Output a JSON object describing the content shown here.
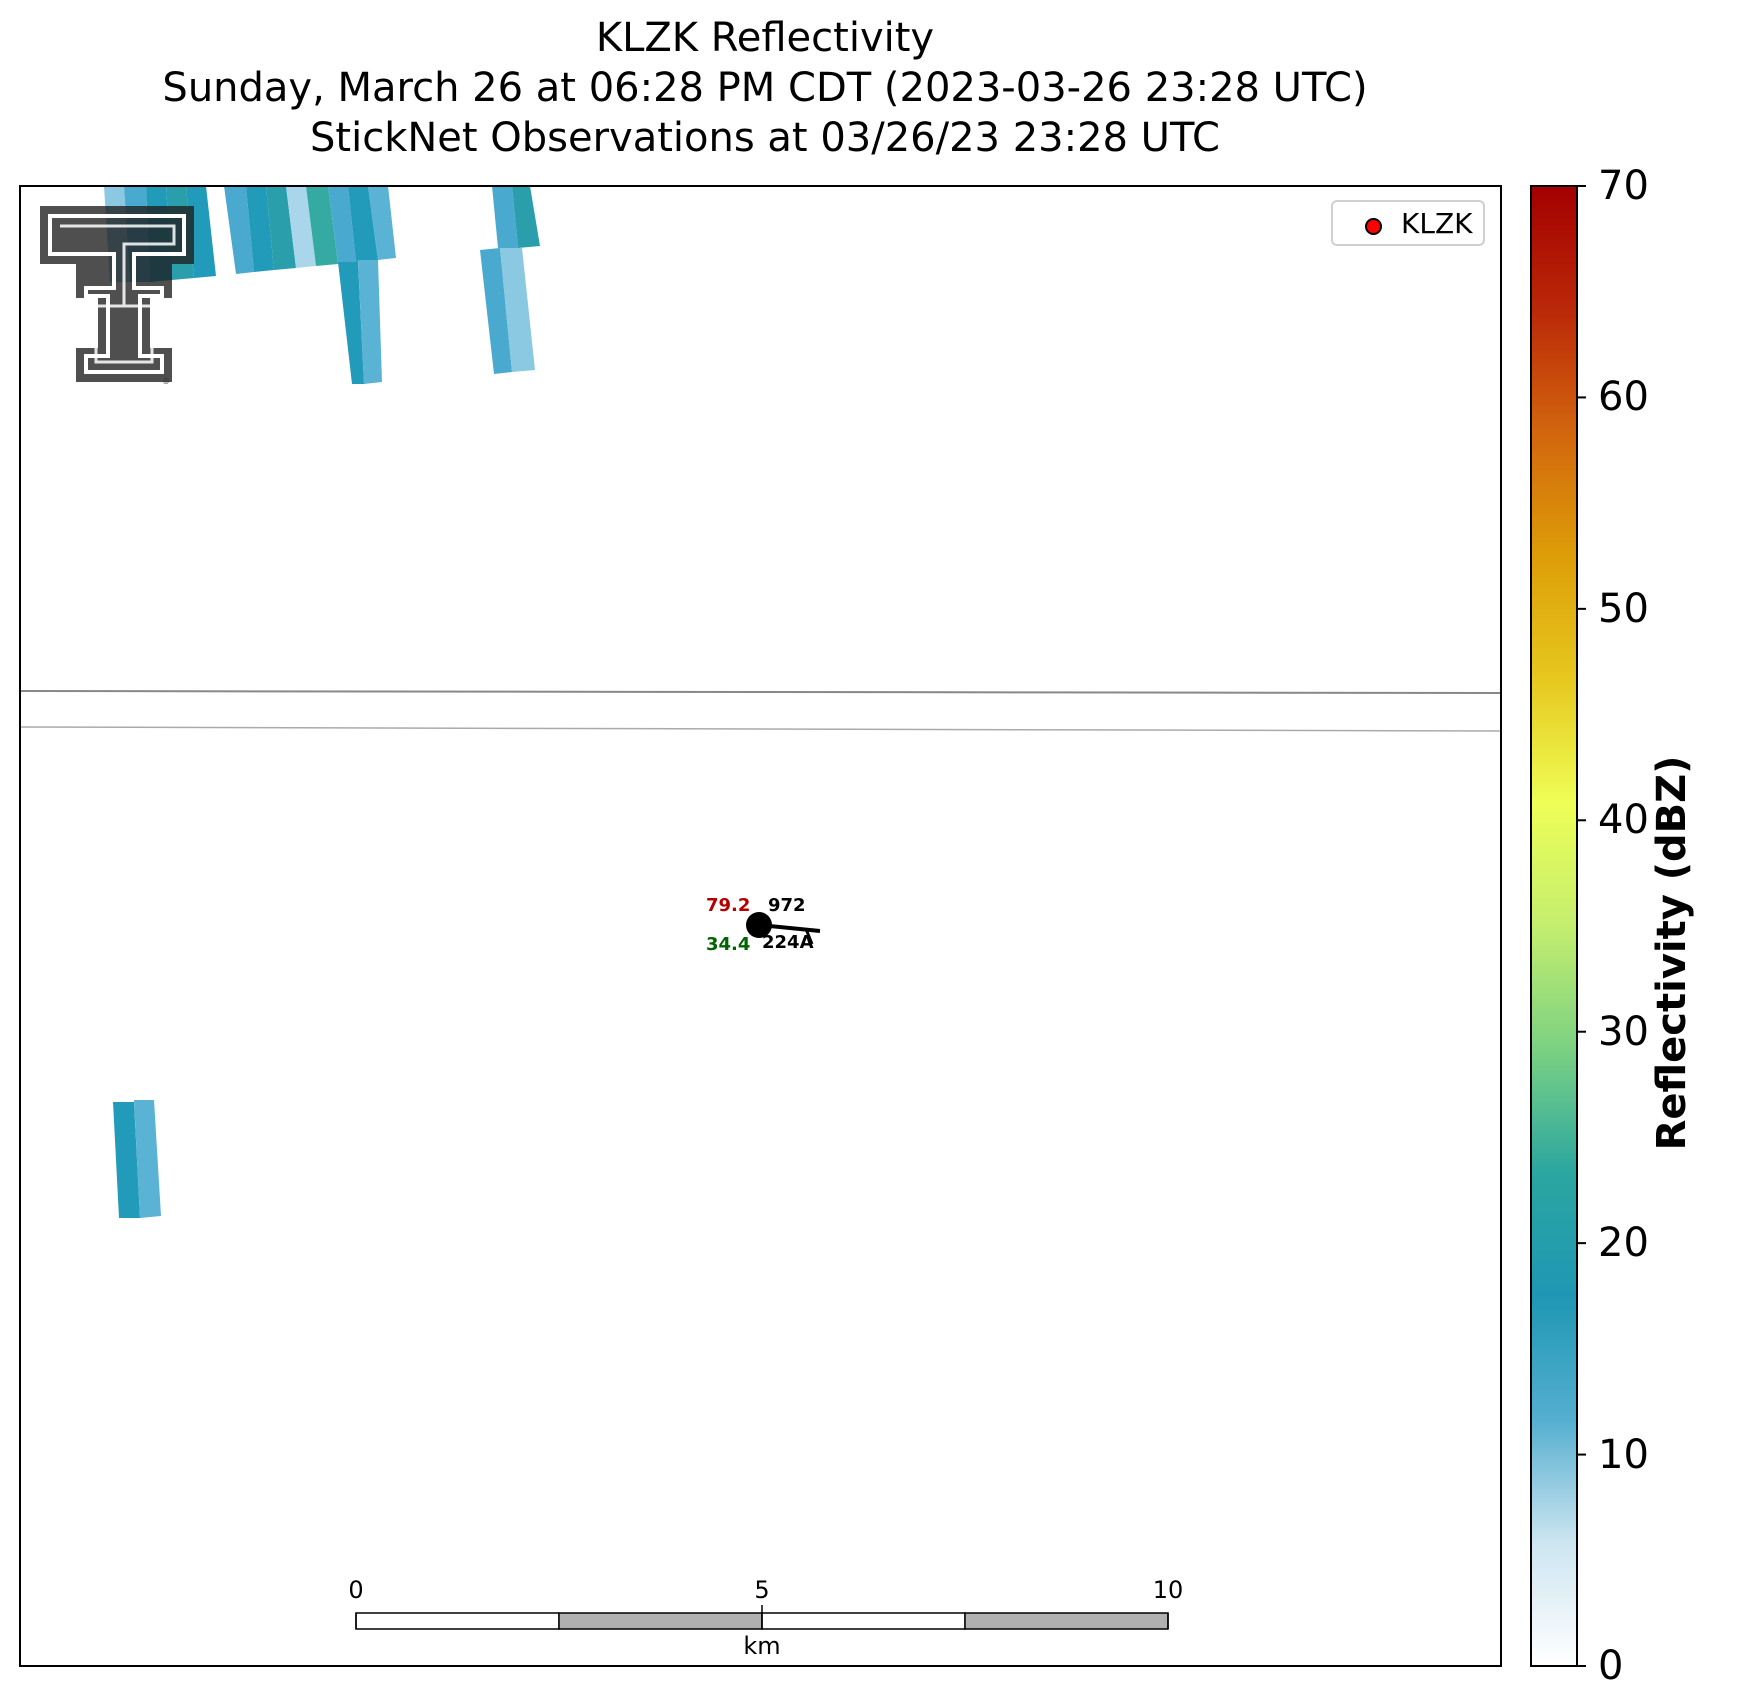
{
  "chart_data": {
    "type": "heatmap",
    "title": [
      "KLZK Reflectivity",
      "Sunday, March 26 at 06:28 PM CDT (2023-03-26 23:28 UTC)",
      "StickNet Observations at 03/26/23 23:28 UTC"
    ],
    "radar": "KLZK",
    "legend": {
      "entries": [
        "KLZK"
      ],
      "marker_color": "#ff0000",
      "placement": "upper-right"
    },
    "colorbar": {
      "label": "Reflectivity (dBZ)",
      "range": [
        0,
        70
      ],
      "ticks": [
        "0",
        "10",
        "20",
        "30",
        "40",
        "50",
        "60",
        "70"
      ],
      "colors": [
        "#ffffff",
        "#cde5f0",
        "#54aed0",
        "#1f97b4",
        "#2ba6a0",
        "#7bd182",
        "#c4ee6e",
        "#eefe56",
        "#e6c81e",
        "#dd9d08",
        "#d2660e",
        "#bb2808",
        "#a30000"
      ]
    },
    "reflectivity_gates": [
      {
        "dbz": 4,
        "color": "#8bc8e2"
      },
      {
        "dbz": 7,
        "color": "#4aa9cf"
      },
      {
        "dbz": 9,
        "color": "#229bba"
      },
      {
        "dbz": 11,
        "color": "#2a9fab"
      },
      {
        "dbz": 3,
        "color": "#a9d6ea"
      },
      {
        "dbz": 13,
        "color": "#35aaa2"
      },
      {
        "dbz": 6,
        "color": "#5ab2d4"
      }
    ],
    "scale_bar": {
      "ticks": [
        "0",
        "5",
        "10"
      ],
      "unit": "km"
    },
    "station": {
      "id": "224A",
      "temperature": "79.2",
      "dewpoint": "34.4",
      "pressure": "972",
      "temperature_color": "#b30000",
      "dewpoint_color": "#006400"
    },
    "logo": "texas-tech-double-t"
  }
}
